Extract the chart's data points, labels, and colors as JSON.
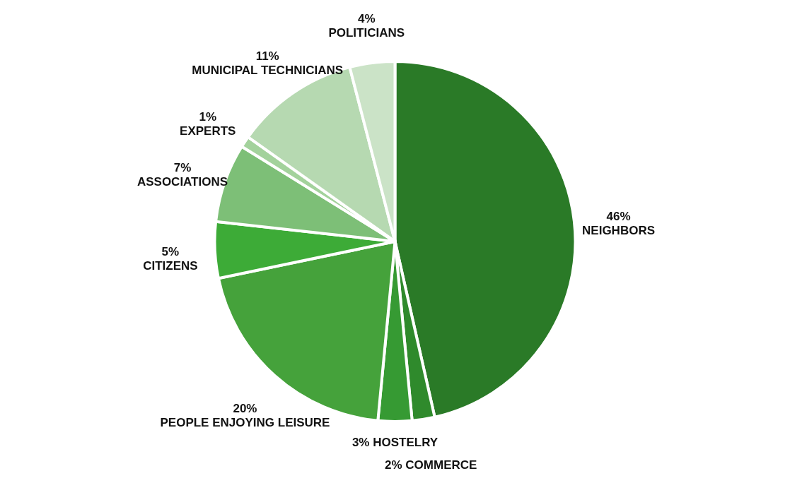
{
  "chart_data": {
    "type": "pie",
    "categories": [
      "NEIGHBORS",
      "COMMERCE",
      "HOSTELRY",
      "PEOPLE ENJOYING LEISURE",
      "CITIZENS",
      "ASSOCIATIONS",
      "EXPERTS",
      "MUNICIPAL TECHNICIANS",
      "POLITICIANS"
    ],
    "values": [
      46,
      2,
      3,
      20,
      5,
      7,
      1,
      11,
      4
    ],
    "value_labels": [
      "46%",
      "2%",
      "3%",
      "20%",
      "5%",
      "7%",
      "1%",
      "11%",
      "4%"
    ],
    "colors": [
      "#2a7a27",
      "#2f8a2c",
      "#369a33",
      "#45a23b",
      "#3dab37",
      "#7dbf77",
      "#a3d29c",
      "#b6d9b1",
      "#cbe3c7"
    ]
  }
}
